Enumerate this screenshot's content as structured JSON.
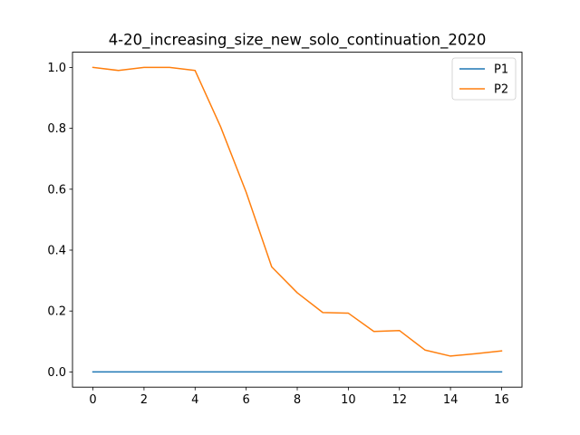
{
  "chart_data": {
    "type": "line",
    "title": "4-20_increasing_size_new_solo_continuation_2020",
    "xlabel": "",
    "ylabel": "",
    "xlim": [
      -0.8,
      16.8
    ],
    "ylim": [
      -0.05,
      1.05
    ],
    "x_ticks": [
      0,
      2,
      4,
      6,
      8,
      10,
      12,
      14,
      16
    ],
    "y_ticks": [
      0.0,
      0.2,
      0.4,
      0.6,
      0.8,
      1.0
    ],
    "y_tick_labels": [
      "0.0",
      "0.2",
      "0.4",
      "0.6",
      "0.8",
      "1.0"
    ],
    "grid": false,
    "legend_position": "top-right",
    "x": [
      0,
      1,
      2,
      3,
      4,
      5,
      6,
      7,
      8,
      9,
      10,
      11,
      12,
      13,
      14,
      15,
      16
    ],
    "series": [
      {
        "name": "P1",
        "color": "#1f77b4",
        "values": [
          0,
          0,
          0,
          0,
          0,
          0,
          0,
          0,
          0,
          0,
          0,
          0,
          0,
          0,
          0,
          0,
          0
        ]
      },
      {
        "name": "P2",
        "color": "#ff7f0e",
        "values": [
          1.0,
          0.99,
          1.0,
          1.0,
          0.99,
          0.805,
          0.59,
          0.345,
          0.26,
          0.195,
          0.193,
          0.133,
          0.136,
          0.072,
          0.052,
          0.06,
          0.069
        ]
      }
    ]
  }
}
